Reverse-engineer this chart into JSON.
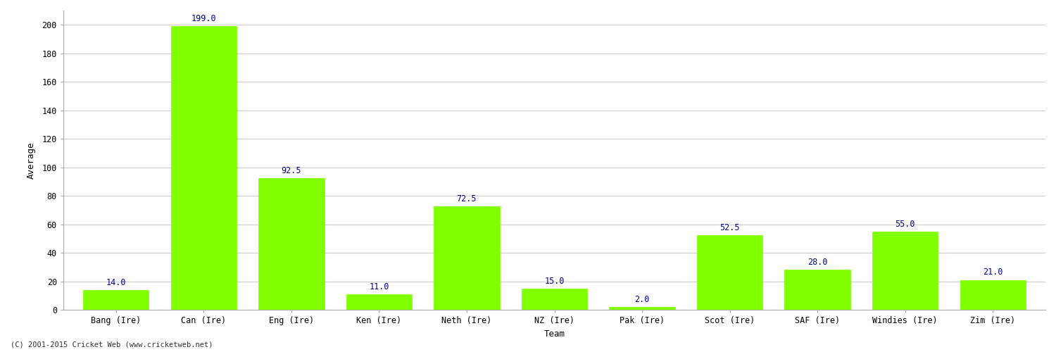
{
  "categories": [
    "Bang (Ire)",
    "Can (Ire)",
    "Eng (Ire)",
    "Ken (Ire)",
    "Neth (Ire)",
    "NZ (Ire)",
    "Pak (Ire)",
    "Scot (Ire)",
    "SAF (Ire)",
    "Windies (Ire)",
    "Zim (Ire)"
  ],
  "values": [
    14.0,
    199.0,
    92.5,
    11.0,
    72.5,
    15.0,
    2.0,
    52.5,
    28.0,
    55.0,
    21.0
  ],
  "bar_color": "#7FFF00",
  "bar_edge_color": "#7FFF00",
  "ylabel": "Average",
  "xlabel": "Team",
  "ylim": [
    0,
    210
  ],
  "yticks": [
    0,
    20,
    40,
    60,
    80,
    100,
    120,
    140,
    160,
    180,
    200
  ],
  "label_color": "#00008B",
  "label_fontsize": 8.5,
  "grid_color": "#cccccc",
  "bg_color": "#ffffff",
  "footer": "(C) 2001-2015 Cricket Web (www.cricketweb.net)",
  "axis_label_fontsize": 9,
  "tick_fontsize": 8.5,
  "bar_width": 0.75
}
